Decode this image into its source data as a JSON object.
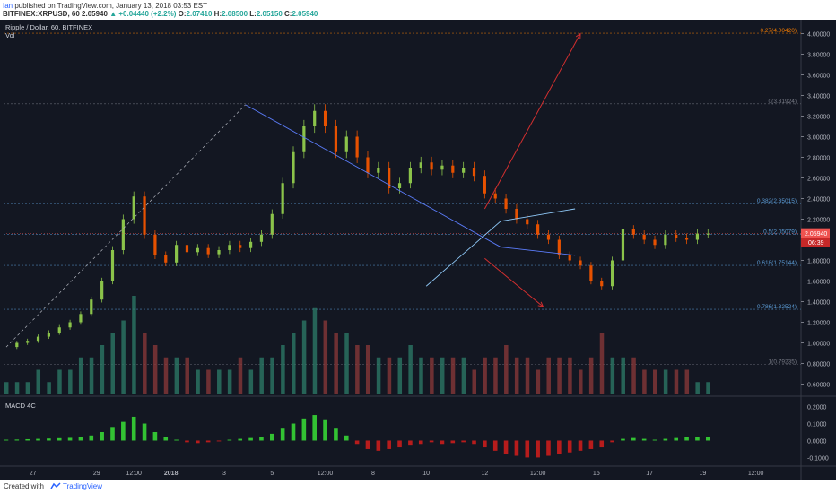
{
  "header": {
    "author": "Ian",
    "published_text": "published on TradingView.com, January 13, 2018 03:53 EST",
    "symbol": "BITFINEX:XRPUSD, 60",
    "last": "2.05940",
    "change_arrow": "▲",
    "change": "+0.04440 (+2.2%)",
    "o_label": "O:",
    "o_value": "2.07410",
    "h_label": "H:",
    "h_value": "2.08500",
    "l_label": "L:",
    "l_value": "2.05150",
    "c_label": "C:",
    "c_value": "2.05940"
  },
  "chart_header": {
    "symbol_label": "Ripple / Dollar, 60, BITFINEX",
    "vol_label": "Vol",
    "macd_label": "MACD 4C"
  },
  "footer": {
    "created_with": "Created with",
    "brand": "TradingView"
  },
  "colors": {
    "background": "#131722",
    "up": "#26a69a",
    "down": "#ef5350",
    "candle_up": "#8bc34a",
    "candle_down": "#e65100",
    "trend": "#5b7cfa",
    "arrow": "#d32f2f",
    "fib": "#90a4ae"
  },
  "chart_data": [
    {
      "type": "line",
      "name": "price",
      "ylim": [
        0.5,
        4.1
      ],
      "y_ticks": [
        "4.00000",
        "3.80000",
        "3.60000",
        "3.40000",
        "3.20000",
        "3.00000",
        "2.80000",
        "2.60000",
        "2.40000",
        "2.20000",
        "2.00000",
        "1.80000",
        "1.60000",
        "1.40000",
        "1.20000",
        "1.00000",
        "0.80000",
        "0.60000"
      ],
      "y_tick_values": [
        4.0,
        3.8,
        3.6,
        3.4,
        3.2,
        3.0,
        2.8,
        2.6,
        2.4,
        2.2,
        2.0,
        1.8,
        1.6,
        1.4,
        1.2,
        1.0,
        0.8,
        0.6
      ],
      "x_ticks": [
        "27",
        "29",
        "12:00",
        "2018",
        "3",
        "5",
        "12:00",
        "8",
        "10",
        "12",
        "12:00",
        "15",
        "17",
        "19",
        "12:00"
      ],
      "x_tick_index": [
        5,
        17,
        24,
        31,
        41,
        50,
        60,
        69,
        79,
        90,
        100,
        111,
        121,
        131,
        141
      ],
      "price_series": [
        0.96,
        1.0,
        1.02,
        1.06,
        1.1,
        1.15,
        1.2,
        1.28,
        1.42,
        1.6,
        1.9,
        2.2,
        2.42,
        2.05,
        1.85,
        1.78,
        1.95,
        1.88,
        1.92,
        1.86,
        1.9,
        1.95,
        1.92,
        1.98,
        2.05,
        2.25,
        2.55,
        2.85,
        3.1,
        3.25,
        3.1,
        2.85,
        3.0,
        2.8,
        2.65,
        2.7,
        2.5,
        2.55,
        2.7,
        2.75,
        2.68,
        2.72,
        2.65,
        2.7,
        2.62,
        2.45,
        2.4,
        2.3,
        2.2,
        2.15,
        2.05,
        2.0,
        1.85,
        1.8,
        1.75,
        1.6,
        1.55,
        1.8,
        2.1,
        2.05,
        2.0,
        1.95,
        2.05,
        2.02,
        2.0,
        2.06,
        2.06
      ],
      "series_start_index": 0,
      "last_price_badge": "2.05940",
      "time_badge": "06:39",
      "fib_levels": [
        {
          "label": "0.27(4.00420)",
          "value": 4.0042
        },
        {
          "label": "0(3.31924)",
          "value": 3.31924
        },
        {
          "label": "0.382(2.35015)",
          "value": 2.35015
        },
        {
          "label": "0.5(2.05079)",
          "value": 2.05079
        },
        {
          "label": "0.618(1.75144)",
          "value": 1.75144
        },
        {
          "label": "0.786(1.32524)",
          "value": 1.32524
        },
        {
          "label": "1(0.79235)",
          "value": 0.79235
        }
      ],
      "trendlines": [
        {
          "kind": "dashed",
          "from": [
            0,
            0.96
          ],
          "to": [
            45,
            3.31
          ]
        },
        {
          "kind": "resistance",
          "from": [
            45,
            3.31
          ],
          "to": [
            93,
            1.93
          ]
        },
        {
          "kind": "support",
          "from": [
            79,
            1.55
          ],
          "to": [
            93,
            2.18
          ]
        }
      ],
      "arrows": [
        {
          "from": [
            90,
            2.3
          ],
          "to": [
            108,
            4.0
          ]
        },
        {
          "from": [
            90,
            1.82
          ],
          "to": [
            101,
            1.35
          ]
        }
      ]
    },
    {
      "type": "bar",
      "name": "volume",
      "values": [
        1,
        1,
        1,
        2,
        1,
        2,
        2,
        3,
        3,
        4,
        5,
        6,
        8,
        5,
        4,
        3,
        3,
        3,
        2,
        2,
        2,
        2,
        3,
        2,
        3,
        3,
        4,
        5,
        6,
        7,
        6,
        5,
        5,
        4,
        4,
        3,
        3,
        3,
        4,
        3,
        3,
        3,
        3,
        3,
        2,
        3,
        3,
        4,
        3,
        3,
        2,
        3,
        3,
        3,
        2,
        3,
        5,
        3,
        3,
        3,
        2,
        2,
        2,
        2,
        2,
        1,
        1
      ]
    },
    {
      "type": "bar",
      "name": "macd",
      "y_ticks": [
        "0.2000",
        "0.1000",
        "0.0000",
        "-0.1000"
      ],
      "y_tick_values": [
        0.2,
        0.1,
        0.0,
        -0.1
      ],
      "ylim": [
        -0.14,
        0.24
      ],
      "values": [
        0.005,
        0.006,
        0.008,
        0.01,
        0.012,
        0.014,
        0.016,
        0.02,
        0.03,
        0.05,
        0.08,
        0.11,
        0.14,
        0.1,
        0.05,
        0.02,
        0.005,
        -0.01,
        -0.015,
        -0.01,
        -0.005,
        0.005,
        0.01,
        0.015,
        0.02,
        0.04,
        0.07,
        0.1,
        0.13,
        0.15,
        0.12,
        0.07,
        0.03,
        -0.02,
        -0.05,
        -0.06,
        -0.05,
        -0.04,
        -0.03,
        -0.02,
        -0.01,
        -0.02,
        -0.015,
        -0.01,
        -0.02,
        -0.04,
        -0.06,
        -0.08,
        -0.09,
        -0.1,
        -0.1,
        -0.09,
        -0.08,
        -0.07,
        -0.06,
        -0.05,
        -0.04,
        -0.01,
        0.01,
        0.015,
        0.01,
        0.005,
        0.01,
        0.015,
        0.02,
        0.02,
        0.02
      ]
    }
  ]
}
